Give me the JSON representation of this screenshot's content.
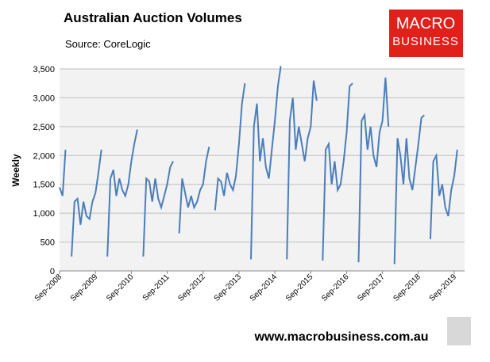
{
  "chart_data": {
    "type": "line",
    "title": "Australian Auction Volumes",
    "subtitle": "Source: CoreLogic",
    "y_label": "Weekly",
    "categories": [
      "Sep-2008",
      null,
      null,
      null,
      null,
      null,
      null,
      null,
      null,
      null,
      null,
      null,
      "Sep-2009",
      null,
      null,
      null,
      null,
      null,
      null,
      null,
      null,
      null,
      null,
      null,
      "Sep-2010",
      null,
      null,
      null,
      null,
      null,
      null,
      null,
      null,
      null,
      null,
      null,
      "Sep-2011",
      null,
      null,
      null,
      null,
      null,
      null,
      null,
      null,
      null,
      null,
      null,
      "Sep-2012",
      null,
      null,
      null,
      null,
      null,
      null,
      null,
      null,
      null,
      null,
      null,
      "Sep-2013",
      null,
      null,
      null,
      null,
      null,
      null,
      null,
      null,
      null,
      null,
      null,
      "Sep-2014",
      null,
      null,
      null,
      null,
      null,
      null,
      null,
      null,
      null,
      null,
      null,
      "Sep-2015",
      null,
      null,
      null,
      null,
      null,
      null,
      null,
      null,
      null,
      null,
      null,
      "Sep-2016",
      null,
      null,
      null,
      null,
      null,
      null,
      null,
      null,
      null,
      null,
      null,
      "Sep-2017",
      null,
      null,
      null,
      null,
      null,
      null,
      null,
      null,
      null,
      null,
      null,
      "Sep-2018",
      null,
      null,
      null,
      null,
      null,
      null,
      null,
      null,
      null,
      null,
      null,
      "Sep-2019",
      null
    ],
    "series": [
      {
        "color": "#4a7ebb",
        "values": [
          1450,
          1300,
          2100,
          null,
          250,
          1200,
          1250,
          800,
          1200,
          950,
          900,
          1200,
          1350,
          1700,
          2100,
          null,
          250,
          1600,
          1750,
          1300,
          1600,
          1400,
          1300,
          1500,
          1900,
          2200,
          2450,
          null,
          250,
          1600,
          1550,
          1200,
          1600,
          1250,
          1100,
          1300,
          1500,
          1800,
          1900,
          null,
          650,
          1600,
          1350,
          1100,
          1300,
          1100,
          1200,
          1400,
          1500,
          1900,
          2150,
          null,
          1050,
          1600,
          1550,
          1300,
          1700,
          1500,
          1400,
          1650,
          2200,
          2900,
          3250,
          null,
          200,
          2500,
          2900,
          1900,
          2300,
          1800,
          1600,
          2100,
          2600,
          3200,
          3550,
          null,
          200,
          2600,
          3000,
          2100,
          2500,
          2200,
          1900,
          2300,
          2500,
          3300,
          2950,
          null,
          180,
          2100,
          2200,
          1500,
          1900,
          1400,
          1500,
          1900,
          2400,
          3200,
          3250,
          null,
          150,
          2600,
          2700,
          2100,
          2500,
          2000,
          1800,
          2400,
          2600,
          3350,
          2500,
          null,
          120,
          2300,
          2000,
          1500,
          2300,
          1600,
          1400,
          1800,
          2200,
          2650,
          2700,
          null,
          550,
          1900,
          2000,
          1300,
          1500,
          1100,
          950,
          1400,
          1650,
          2100
        ]
      }
    ],
    "ylim": [
      0,
      3500
    ],
    "yticks": [
      0,
      500,
      {
        "value": 1000,
        "label": "1,000"
      },
      {
        "value": 1500,
        "label": "1,500"
      },
      {
        "value": 2000,
        "label": "2,000"
      },
      {
        "value": 2500,
        "label": "2,500"
      },
      {
        "value": 3000,
        "label": "3,000"
      },
      {
        "value": 3500,
        "label": "3,500"
      }
    ],
    "grid": true
  },
  "logo": {
    "line1": "MACRO",
    "line2": "BUSINESS"
  },
  "footer": "www.macrobusiness.com.au"
}
